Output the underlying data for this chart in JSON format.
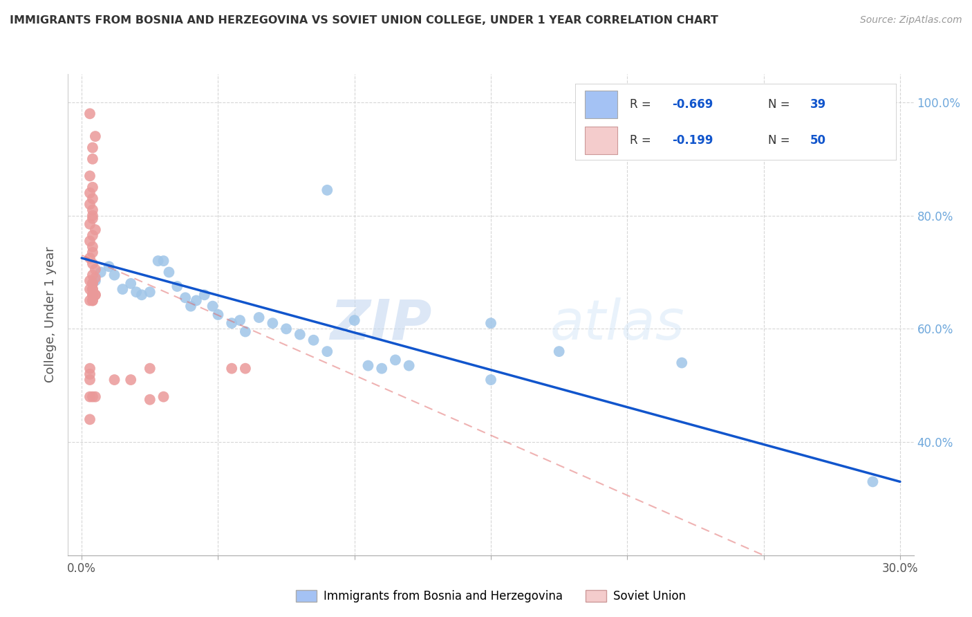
{
  "title": "IMMIGRANTS FROM BOSNIA AND HERZEGOVINA VS SOVIET UNION COLLEGE, UNDER 1 YEAR CORRELATION CHART",
  "source": "Source: ZipAtlas.com",
  "ylabel": "College, Under 1 year",
  "watermark_zip": "ZIP",
  "watermark_atlas": "atlas",
  "legend_r1": "-0.669",
  "legend_n1": "39",
  "legend_r2": "-0.199",
  "legend_n2": "50",
  "blue_color": "#9fc5e8",
  "pink_color": "#ea9999",
  "blue_fill": "#a4c2f4",
  "pink_fill": "#f4cccc",
  "blue_line_color": "#1155cc",
  "pink_line_color": "#e06666",
  "blue_scatter": [
    [
      0.005,
      0.685
    ],
    [
      0.007,
      0.7
    ],
    [
      0.01,
      0.71
    ],
    [
      0.012,
      0.695
    ],
    [
      0.015,
      0.67
    ],
    [
      0.018,
      0.68
    ],
    [
      0.02,
      0.665
    ],
    [
      0.022,
      0.66
    ],
    [
      0.025,
      0.665
    ],
    [
      0.028,
      0.72
    ],
    [
      0.03,
      0.72
    ],
    [
      0.032,
      0.7
    ],
    [
      0.035,
      0.675
    ],
    [
      0.038,
      0.655
    ],
    [
      0.04,
      0.64
    ],
    [
      0.042,
      0.65
    ],
    [
      0.045,
      0.66
    ],
    [
      0.048,
      0.64
    ],
    [
      0.05,
      0.625
    ],
    [
      0.055,
      0.61
    ],
    [
      0.058,
      0.615
    ],
    [
      0.06,
      0.595
    ],
    [
      0.065,
      0.62
    ],
    [
      0.07,
      0.61
    ],
    [
      0.075,
      0.6
    ],
    [
      0.08,
      0.59
    ],
    [
      0.085,
      0.58
    ],
    [
      0.09,
      0.56
    ],
    [
      0.09,
      0.845
    ],
    [
      0.1,
      0.615
    ],
    [
      0.105,
      0.535
    ],
    [
      0.11,
      0.53
    ],
    [
      0.115,
      0.545
    ],
    [
      0.12,
      0.535
    ],
    [
      0.15,
      0.61
    ],
    [
      0.175,
      0.56
    ],
    [
      0.22,
      0.54
    ],
    [
      0.15,
      0.51
    ],
    [
      0.29,
      0.33
    ]
  ],
  "pink_scatter": [
    [
      0.003,
      0.98
    ],
    [
      0.005,
      0.94
    ],
    [
      0.004,
      0.92
    ],
    [
      0.004,
      0.9
    ],
    [
      0.003,
      0.87
    ],
    [
      0.004,
      0.85
    ],
    [
      0.003,
      0.84
    ],
    [
      0.004,
      0.83
    ],
    [
      0.003,
      0.82
    ],
    [
      0.004,
      0.81
    ],
    [
      0.004,
      0.8
    ],
    [
      0.004,
      0.795
    ],
    [
      0.003,
      0.785
    ],
    [
      0.005,
      0.775
    ],
    [
      0.004,
      0.765
    ],
    [
      0.003,
      0.755
    ],
    [
      0.004,
      0.745
    ],
    [
      0.004,
      0.735
    ],
    [
      0.003,
      0.725
    ],
    [
      0.004,
      0.715
    ],
    [
      0.005,
      0.705
    ],
    [
      0.004,
      0.695
    ],
    [
      0.003,
      0.685
    ],
    [
      0.004,
      0.68
    ],
    [
      0.004,
      0.67
    ],
    [
      0.005,
      0.66
    ],
    [
      0.003,
      0.65
    ],
    [
      0.005,
      0.69
    ],
    [
      0.004,
      0.68
    ],
    [
      0.004,
      0.67
    ],
    [
      0.005,
      0.66
    ],
    [
      0.003,
      0.67
    ],
    [
      0.004,
      0.66
    ],
    [
      0.004,
      0.65
    ],
    [
      0.004,
      0.66
    ],
    [
      0.004,
      0.65
    ],
    [
      0.012,
      0.51
    ],
    [
      0.018,
      0.51
    ],
    [
      0.003,
      0.51
    ],
    [
      0.003,
      0.52
    ],
    [
      0.003,
      0.53
    ],
    [
      0.003,
      0.44
    ],
    [
      0.025,
      0.475
    ],
    [
      0.03,
      0.48
    ],
    [
      0.055,
      0.53
    ],
    [
      0.06,
      0.53
    ],
    [
      0.025,
      0.53
    ],
    [
      0.003,
      0.48
    ],
    [
      0.004,
      0.48
    ],
    [
      0.005,
      0.48
    ]
  ],
  "xmin": -0.005,
  "xmax": 0.305,
  "ymin": 0.2,
  "ymax": 1.05,
  "xticks": [
    0.0,
    0.05,
    0.1,
    0.15,
    0.2,
    0.25,
    0.3
  ],
  "xtick_labels": [
    "0.0%",
    "",
    "",
    "",
    "",
    "",
    "30.0%"
  ],
  "ytick_positions": [
    0.4,
    0.6,
    0.8,
    1.0
  ],
  "ytick_labels_right": [
    "40.0%",
    "60.0%",
    "80.0%",
    "100.0%"
  ],
  "blue_line_x": [
    0.0,
    0.3
  ],
  "blue_line_y": [
    0.725,
    0.33
  ],
  "pink_line_x": [
    0.0,
    0.25
  ],
  "pink_line_y": [
    0.73,
    0.2
  ]
}
